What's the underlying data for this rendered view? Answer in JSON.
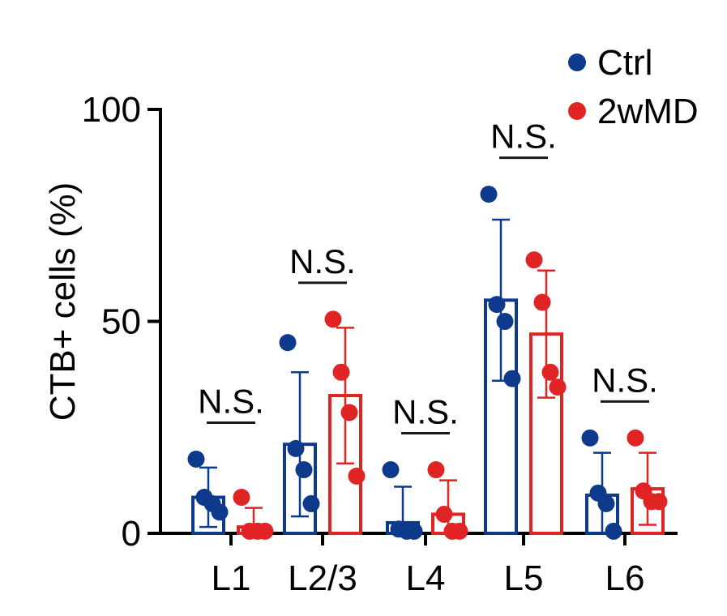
{
  "colors": {
    "ctrl": "#0d3a8c",
    "md": "#e02424",
    "axis": "#000000",
    "sig": "#1a1a1a"
  },
  "chart_data": {
    "type": "bar",
    "ylabel": "CTB+ cells (%)",
    "ylim": [
      0,
      100
    ],
    "yticks": [
      "0",
      "50",
      "100"
    ],
    "categories": [
      "L1",
      "L2/3",
      "L4",
      "L5",
      "L6"
    ],
    "legend": {
      "placement": "top-right",
      "entries": [
        "Ctrl",
        "2wMD"
      ]
    },
    "series": [
      {
        "name": "Ctrl",
        "color": "#0d3a8c",
        "means": [
          8.5,
          21,
          2.5,
          55,
          9
        ],
        "sd": [
          7,
          17,
          8.5,
          19,
          10
        ],
        "points": [
          [
            17.5,
            8.5,
            7,
            5
          ],
          [
            45,
            20,
            15,
            7
          ],
          [
            15,
            1,
            0.5,
            0.5
          ],
          [
            80,
            54,
            50,
            36.5
          ],
          [
            22.5,
            9.5,
            7,
            0.5
          ]
        ]
      },
      {
        "name": "2wMD",
        "color": "#e02424",
        "means": [
          1.5,
          32.5,
          4.5,
          47,
          10.5
        ],
        "sd": [
          4.5,
          16,
          8,
          15,
          8.5
        ],
        "points": [
          [
            8.5,
            0.5,
            0.5,
            0.5
          ],
          [
            50.5,
            38,
            28.5,
            13.5
          ],
          [
            15,
            4.5,
            0.5,
            0.5
          ],
          [
            64.5,
            54.5,
            38,
            34.5
          ],
          [
            22.5,
            10,
            7.5,
            7.5
          ]
        ]
      }
    ],
    "annotations": [
      "N.S.",
      "N.S.",
      "N.S.",
      "N.S.",
      "N.S."
    ]
  }
}
